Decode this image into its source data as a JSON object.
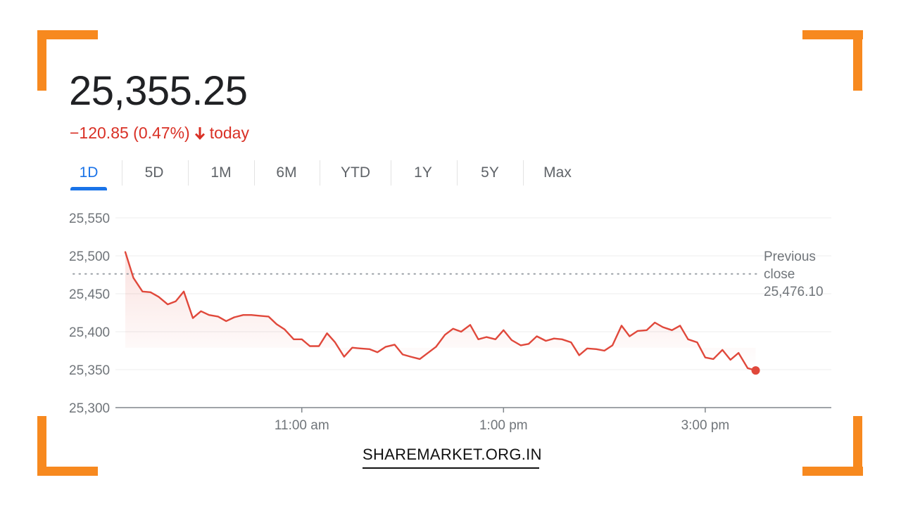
{
  "quote": {
    "price": "25,355.25",
    "change": "−120.85 (0.47%)",
    "period_label": "today",
    "direction": "down",
    "down_color": "#d93025"
  },
  "tabs": [
    {
      "label": "1D",
      "active": true
    },
    {
      "label": "5D",
      "active": false
    },
    {
      "label": "1M",
      "active": false
    },
    {
      "label": "6M",
      "active": false
    },
    {
      "label": "YTD",
      "active": false
    },
    {
      "label": "1Y",
      "active": false
    },
    {
      "label": "5Y",
      "active": false
    },
    {
      "label": "Max",
      "active": false
    }
  ],
  "chart_data": {
    "type": "line",
    "title": "",
    "xlabel": "",
    "ylabel": "",
    "ylim": [
      25300,
      25550
    ],
    "yticks": [
      25550,
      25500,
      25450,
      25400,
      25350,
      25300
    ],
    "ytick_labels": [
      "25,550",
      "25,500",
      "25,450",
      "25,400",
      "25,350",
      "25,300"
    ],
    "xlim": [
      9.25,
      16.25
    ],
    "xticks": [
      11,
      13,
      15
    ],
    "xtick_labels": [
      "11:00 am",
      "1:00 pm",
      "3:00 pm"
    ],
    "grid": true,
    "line_color": "#e0483b",
    "reference_line": {
      "value": 25476.1,
      "label_lines": [
        "Previous",
        "close",
        "25,476.10"
      ]
    },
    "series": [
      {
        "x": [
          9.25,
          9.33,
          9.42,
          9.5,
          9.58,
          9.67,
          9.75,
          9.83,
          9.92,
          10.0,
          10.08,
          10.17,
          10.25,
          10.33,
          10.42,
          10.5,
          10.58,
          10.67,
          10.75,
          10.83,
          10.92,
          11.0,
          11.08,
          11.17,
          11.25,
          11.33,
          11.42,
          11.5,
          11.58,
          11.67,
          11.75,
          11.83,
          11.92,
          12.0,
          12.08,
          12.17,
          12.25,
          12.33,
          12.42,
          12.5,
          12.58,
          12.67,
          12.75,
          12.83,
          12.92,
          13.0,
          13.08,
          13.17,
          13.25,
          13.33,
          13.42,
          13.5,
          13.58,
          13.67,
          13.75,
          13.83,
          13.92,
          14.0,
          14.08,
          14.17,
          14.25,
          14.33,
          14.42,
          14.5,
          14.58,
          14.67,
          14.75,
          14.83,
          14.92,
          15.0,
          15.08,
          15.17,
          15.25,
          15.33,
          15.42,
          15.5
        ],
        "y": [
          25505,
          25471,
          25453,
          25452,
          25446,
          25436,
          25440,
          25453,
          25418,
          25427,
          25422,
          25420,
          25414,
          25419,
          25422,
          25422,
          25421,
          25420,
          25410,
          25403,
          25390,
          25390,
          25381,
          25381,
          25398,
          25386,
          25367,
          25379,
          25378,
          25377,
          25373,
          25380,
          25383,
          25370,
          25367,
          25364,
          25372,
          25380,
          25396,
          25404,
          25400,
          25409,
          25390,
          25393,
          25390,
          25402,
          25389,
          25382,
          25384,
          25394,
          25388,
          25391,
          25390,
          25386,
          25369,
          25378,
          25377,
          25375,
          25382,
          25408,
          25394,
          25401,
          25402,
          25412,
          25406,
          25402,
          25408,
          25390,
          25386,
          25366,
          25364,
          25376,
          25363,
          25372,
          25352,
          25349
        ]
      }
    ]
  },
  "brand": {
    "label": "SHAREMARKET.ORG.IN",
    "accent": "#f7891f"
  }
}
